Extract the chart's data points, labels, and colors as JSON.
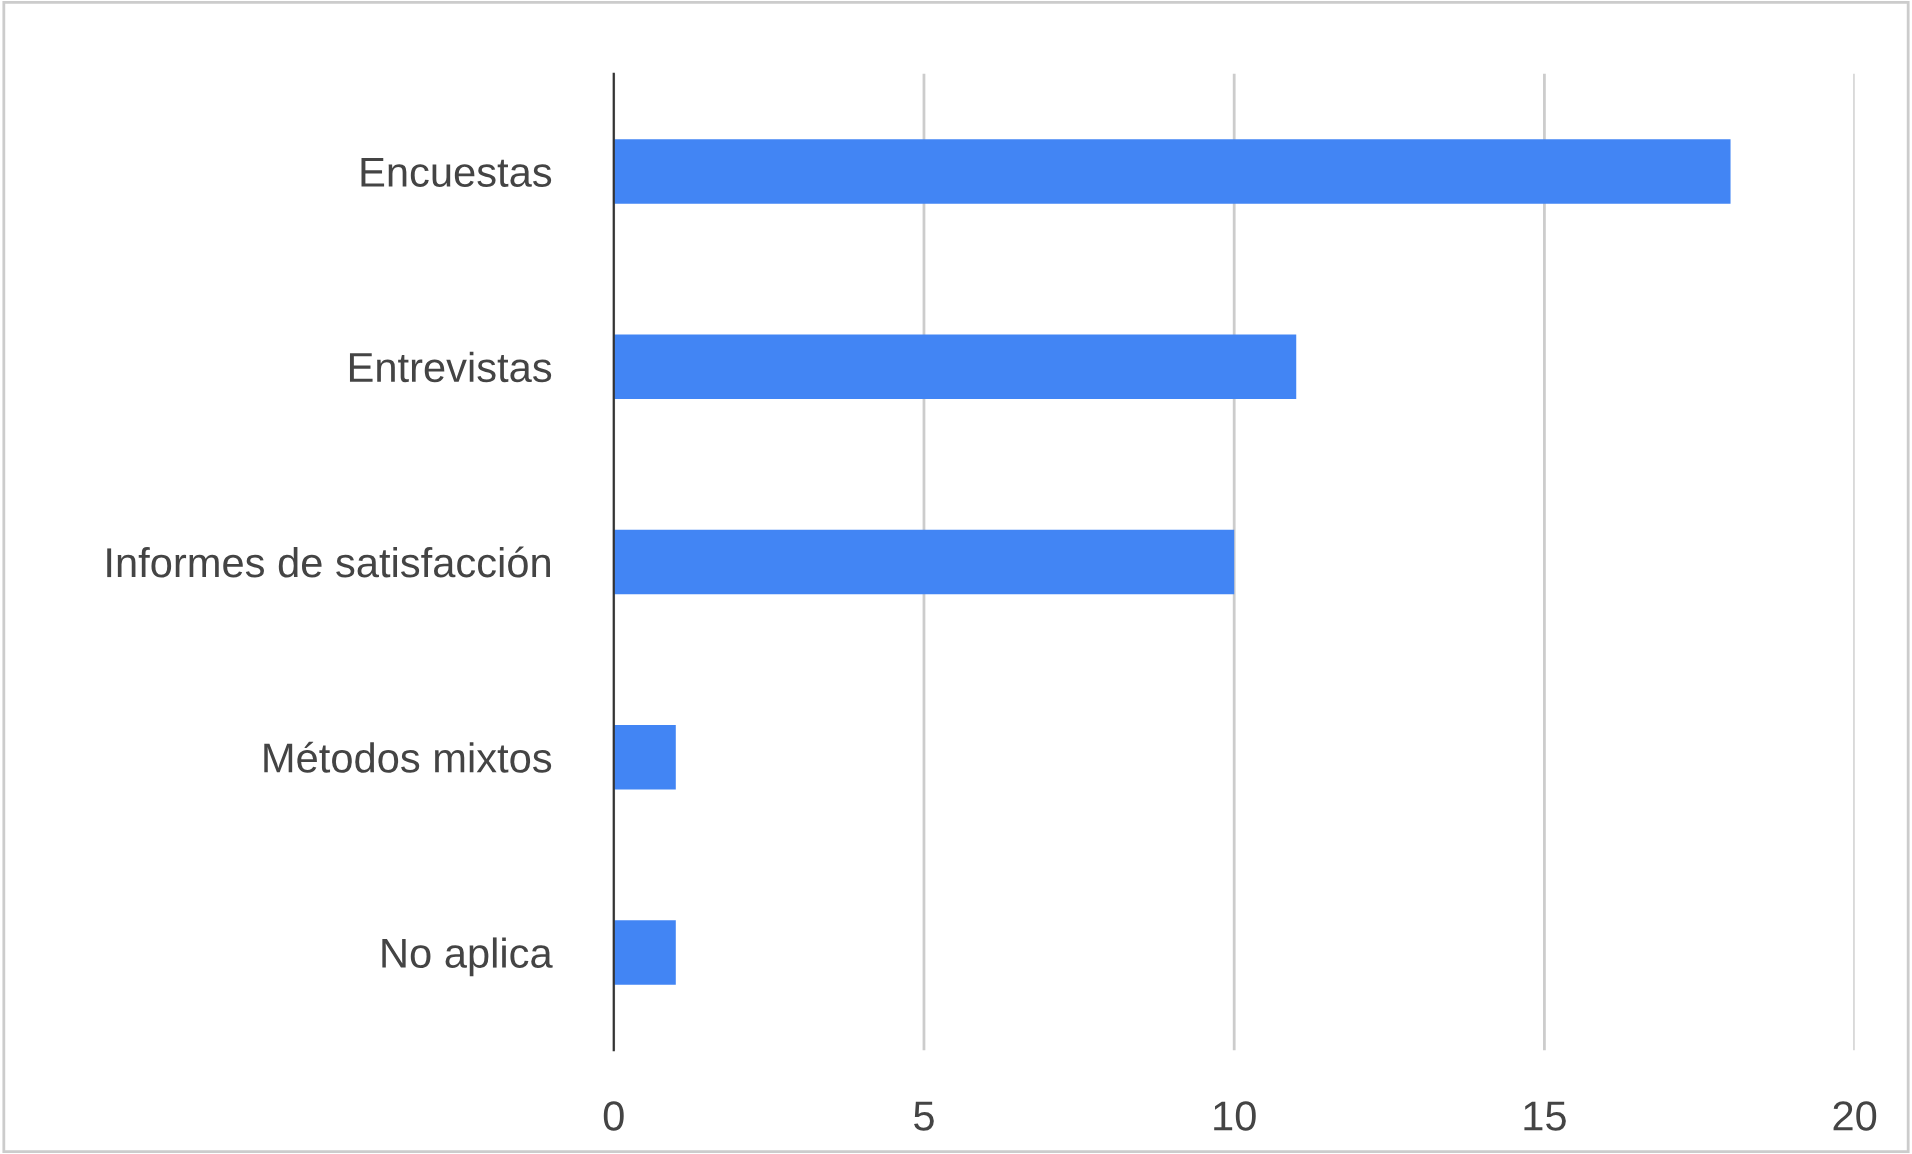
{
  "chart_data": {
    "type": "bar",
    "orientation": "horizontal",
    "categories": [
      "Encuestas",
      "Entrevistas",
      "Informes de satisfacción",
      "Métodos mixtos",
      "No aplica"
    ],
    "values": [
      18,
      11,
      10,
      1,
      1
    ],
    "color": "#4285f4",
    "xlim": [
      0,
      20
    ],
    "xticks": [
      0,
      5,
      10,
      15,
      20
    ],
    "grid": "x",
    "legend": false
  }
}
